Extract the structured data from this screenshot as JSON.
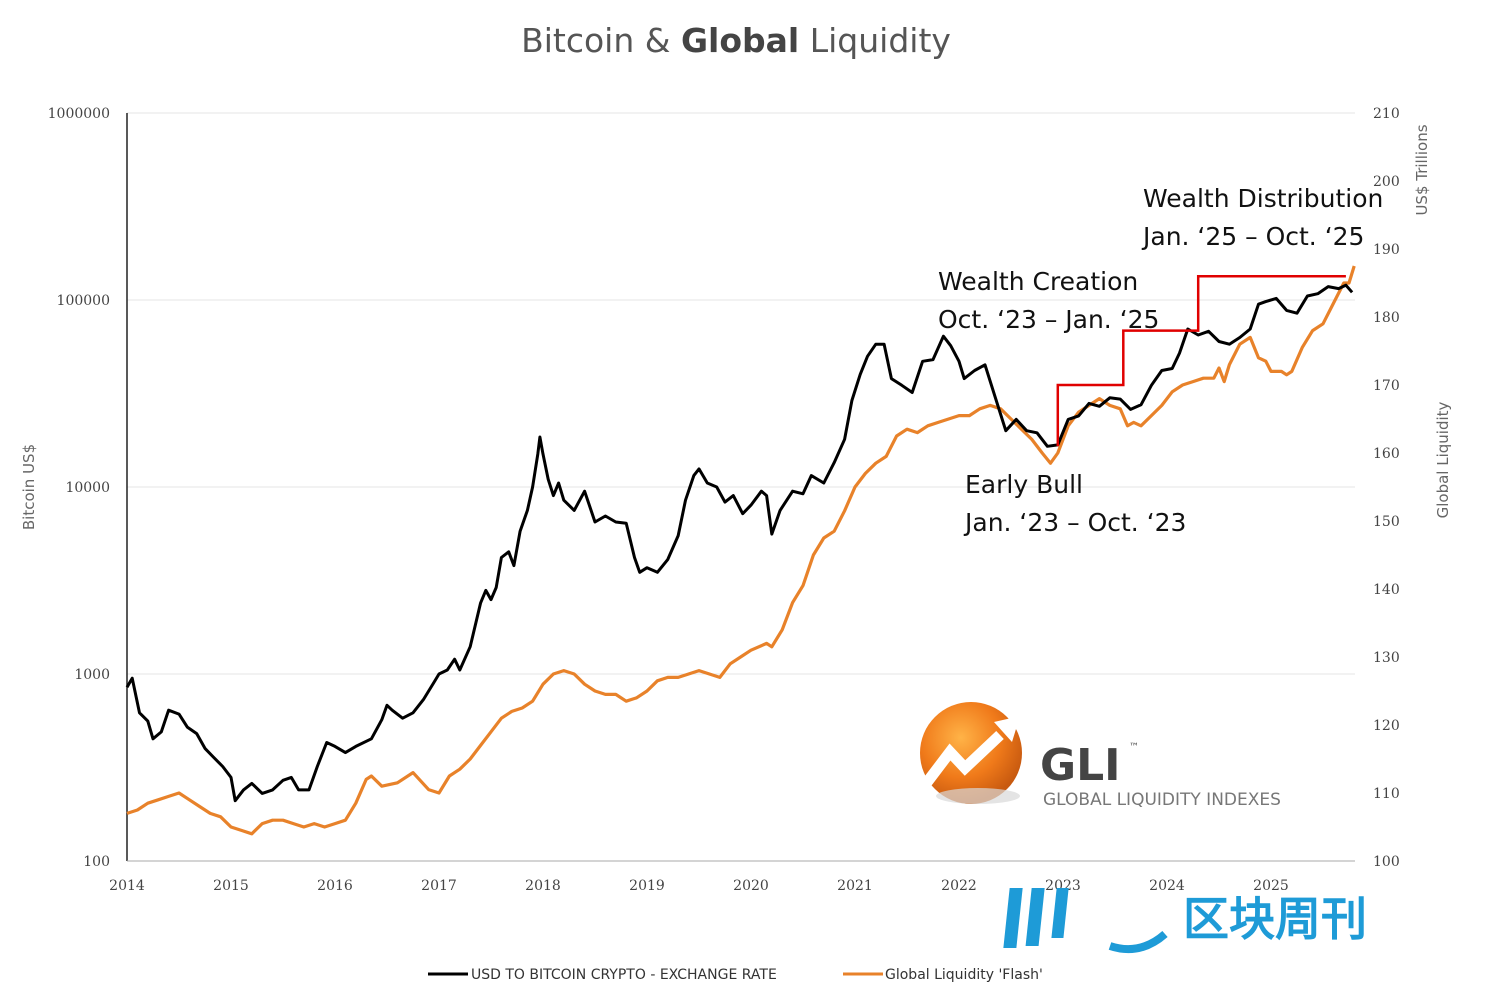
{
  "chart_data": {
    "type": "line",
    "title_parts": [
      "Bitcoin & ",
      "Global",
      " Liquidity"
    ],
    "left_axis": {
      "label": "Bitcoin US$",
      "scale": "log",
      "range": [
        100,
        1000000
      ],
      "ticks": [
        "1000000",
        "100000",
        "10000",
        "1000",
        "100"
      ]
    },
    "right_axis": {
      "label_top": "US$ Trillions",
      "label_mid": "Global Liquidity",
      "range": [
        100,
        210
      ],
      "ticks": [
        "210",
        "200",
        "190",
        "180",
        "170",
        "160",
        "150",
        "140",
        "130",
        "120",
        "110",
        "100"
      ]
    },
    "x_axis": {
      "range": [
        2014,
        2025.8
      ],
      "ticks": [
        "2014",
        "2015",
        "2016",
        "2017",
        "2018",
        "2019",
        "2020",
        "2021",
        "2022",
        "2023",
        "2024",
        "2025"
      ]
    },
    "series": [
      {
        "name": "USD TO BITCOIN CRYPTO - EXCHANGE RATE",
        "axis": "left",
        "color": "#000000",
        "points": [
          [
            2014.0,
            850
          ],
          [
            2014.05,
            950
          ],
          [
            2014.12,
            620
          ],
          [
            2014.2,
            560
          ],
          [
            2014.25,
            450
          ],
          [
            2014.33,
            490
          ],
          [
            2014.4,
            640
          ],
          [
            2014.5,
            610
          ],
          [
            2014.58,
            520
          ],
          [
            2014.67,
            480
          ],
          [
            2014.75,
            400
          ],
          [
            2014.83,
            360
          ],
          [
            2014.92,
            320
          ],
          [
            2015.0,
            280
          ],
          [
            2015.04,
            210
          ],
          [
            2015.12,
            240
          ],
          [
            2015.2,
            260
          ],
          [
            2015.3,
            230
          ],
          [
            2015.4,
            240
          ],
          [
            2015.5,
            270
          ],
          [
            2015.58,
            280
          ],
          [
            2015.65,
            240
          ],
          [
            2015.75,
            240
          ],
          [
            2015.83,
            320
          ],
          [
            2015.92,
            430
          ],
          [
            2016.0,
            410
          ],
          [
            2016.1,
            380
          ],
          [
            2016.2,
            410
          ],
          [
            2016.35,
            450
          ],
          [
            2016.45,
            570
          ],
          [
            2016.5,
            680
          ],
          [
            2016.55,
            640
          ],
          [
            2016.65,
            580
          ],
          [
            2016.75,
            620
          ],
          [
            2016.85,
            730
          ],
          [
            2016.95,
            900
          ],
          [
            2017.0,
            1000
          ],
          [
            2017.08,
            1050
          ],
          [
            2017.15,
            1200
          ],
          [
            2017.2,
            1050
          ],
          [
            2017.3,
            1400
          ],
          [
            2017.4,
            2400
          ],
          [
            2017.45,
            2800
          ],
          [
            2017.5,
            2500
          ],
          [
            2017.55,
            2900
          ],
          [
            2017.6,
            4200
          ],
          [
            2017.67,
            4500
          ],
          [
            2017.72,
            3800
          ],
          [
            2017.78,
            5800
          ],
          [
            2017.85,
            7500
          ],
          [
            2017.9,
            10000
          ],
          [
            2017.95,
            15000
          ],
          [
            2017.97,
            18500
          ],
          [
            2018.0,
            15000
          ],
          [
            2018.05,
            11000
          ],
          [
            2018.1,
            9000
          ],
          [
            2018.15,
            10500
          ],
          [
            2018.2,
            8500
          ],
          [
            2018.3,
            7500
          ],
          [
            2018.4,
            9500
          ],
          [
            2018.5,
            6500
          ],
          [
            2018.6,
            7000
          ],
          [
            2018.7,
            6500
          ],
          [
            2018.8,
            6400
          ],
          [
            2018.88,
            4200
          ],
          [
            2018.93,
            3500
          ],
          [
            2019.0,
            3700
          ],
          [
            2019.1,
            3500
          ],
          [
            2019.2,
            4100
          ],
          [
            2019.3,
            5500
          ],
          [
            2019.37,
            8500
          ],
          [
            2019.45,
            11500
          ],
          [
            2019.5,
            12500
          ],
          [
            2019.58,
            10500
          ],
          [
            2019.67,
            10000
          ],
          [
            2019.75,
            8300
          ],
          [
            2019.83,
            9000
          ],
          [
            2019.92,
            7200
          ],
          [
            2020.0,
            8000
          ],
          [
            2020.1,
            9500
          ],
          [
            2020.15,
            9000
          ],
          [
            2020.2,
            5600
          ],
          [
            2020.28,
            7500
          ],
          [
            2020.4,
            9500
          ],
          [
            2020.5,
            9200
          ],
          [
            2020.58,
            11500
          ],
          [
            2020.7,
            10500
          ],
          [
            2020.8,
            13500
          ],
          [
            2020.9,
            18000
          ],
          [
            2020.97,
            29000
          ],
          [
            2021.05,
            40000
          ],
          [
            2021.12,
            50000
          ],
          [
            2021.2,
            58000
          ],
          [
            2021.28,
            58000
          ],
          [
            2021.35,
            38000
          ],
          [
            2021.45,
            35000
          ],
          [
            2021.55,
            32000
          ],
          [
            2021.65,
            47000
          ],
          [
            2021.75,
            48000
          ],
          [
            2021.85,
            64000
          ],
          [
            2021.92,
            57000
          ],
          [
            2022.0,
            47000
          ],
          [
            2022.05,
            38000
          ],
          [
            2022.15,
            42000
          ],
          [
            2022.25,
            45000
          ],
          [
            2022.35,
            30000
          ],
          [
            2022.45,
            20000
          ],
          [
            2022.55,
            23000
          ],
          [
            2022.65,
            20000
          ],
          [
            2022.75,
            19500
          ],
          [
            2022.85,
            16500
          ],
          [
            2022.95,
            16800
          ],
          [
            2023.05,
            23000
          ],
          [
            2023.15,
            24000
          ],
          [
            2023.25,
            28000
          ],
          [
            2023.35,
            27000
          ],
          [
            2023.45,
            30000
          ],
          [
            2023.55,
            29500
          ],
          [
            2023.65,
            26000
          ],
          [
            2023.75,
            27500
          ],
          [
            2023.85,
            35000
          ],
          [
            2023.95,
            42000
          ],
          [
            2024.05,
            43000
          ],
          [
            2024.12,
            52000
          ],
          [
            2024.2,
            70000
          ],
          [
            2024.3,
            65000
          ],
          [
            2024.4,
            68000
          ],
          [
            2024.5,
            60000
          ],
          [
            2024.6,
            58000
          ],
          [
            2024.7,
            63000
          ],
          [
            2024.8,
            70000
          ],
          [
            2024.88,
            95000
          ],
          [
            2024.95,
            98000
          ],
          [
            2025.05,
            102000
          ],
          [
            2025.15,
            88000
          ],
          [
            2025.25,
            85000
          ],
          [
            2025.35,
            105000
          ],
          [
            2025.45,
            108000
          ],
          [
            2025.55,
            118000
          ],
          [
            2025.65,
            115000
          ],
          [
            2025.72,
            120000
          ],
          [
            2025.78,
            110000
          ]
        ]
      },
      {
        "name": "Global Liquidity 'Flash'",
        "axis": "right",
        "color": "#e8822a",
        "points": [
          [
            2014.0,
            107
          ],
          [
            2014.1,
            107.5
          ],
          [
            2014.2,
            108.5
          ],
          [
            2014.3,
            109
          ],
          [
            2014.4,
            109.5
          ],
          [
            2014.5,
            110
          ],
          [
            2014.6,
            109
          ],
          [
            2014.7,
            108
          ],
          [
            2014.8,
            107
          ],
          [
            2014.9,
            106.5
          ],
          [
            2015.0,
            105
          ],
          [
            2015.1,
            104.5
          ],
          [
            2015.2,
            104
          ],
          [
            2015.3,
            105.5
          ],
          [
            2015.4,
            106
          ],
          [
            2015.5,
            106
          ],
          [
            2015.6,
            105.5
          ],
          [
            2015.7,
            105
          ],
          [
            2015.8,
            105.5
          ],
          [
            2015.9,
            105
          ],
          [
            2016.0,
            105.5
          ],
          [
            2016.1,
            106
          ],
          [
            2016.2,
            108.5
          ],
          [
            2016.3,
            112
          ],
          [
            2016.35,
            112.5
          ],
          [
            2016.45,
            111
          ],
          [
            2016.6,
            111.5
          ],
          [
            2016.75,
            113
          ],
          [
            2016.9,
            110.5
          ],
          [
            2017.0,
            110
          ],
          [
            2017.1,
            112.5
          ],
          [
            2017.2,
            113.5
          ],
          [
            2017.3,
            115
          ],
          [
            2017.4,
            117
          ],
          [
            2017.5,
            119
          ],
          [
            2017.6,
            121
          ],
          [
            2017.7,
            122
          ],
          [
            2017.8,
            122.5
          ],
          [
            2017.9,
            123.5
          ],
          [
            2018.0,
            126
          ],
          [
            2018.1,
            127.5
          ],
          [
            2018.2,
            128
          ],
          [
            2018.3,
            127.5
          ],
          [
            2018.4,
            126
          ],
          [
            2018.5,
            125
          ],
          [
            2018.6,
            124.5
          ],
          [
            2018.7,
            124.5
          ],
          [
            2018.8,
            123.5
          ],
          [
            2018.9,
            124
          ],
          [
            2019.0,
            125
          ],
          [
            2019.1,
            126.5
          ],
          [
            2019.2,
            127
          ],
          [
            2019.3,
            127
          ],
          [
            2019.4,
            127.5
          ],
          [
            2019.5,
            128
          ],
          [
            2019.6,
            127.5
          ],
          [
            2019.7,
            127
          ],
          [
            2019.8,
            129
          ],
          [
            2019.9,
            130
          ],
          [
            2020.0,
            131
          ],
          [
            2020.15,
            132
          ],
          [
            2020.2,
            131.5
          ],
          [
            2020.3,
            134
          ],
          [
            2020.4,
            138
          ],
          [
            2020.5,
            140.5
          ],
          [
            2020.6,
            145
          ],
          [
            2020.7,
            147.5
          ],
          [
            2020.8,
            148.5
          ],
          [
            2020.9,
            151.5
          ],
          [
            2021.0,
            155
          ],
          [
            2021.1,
            157
          ],
          [
            2021.2,
            158.5
          ],
          [
            2021.3,
            159.5
          ],
          [
            2021.4,
            162.5
          ],
          [
            2021.5,
            163.5
          ],
          [
            2021.6,
            163
          ],
          [
            2021.7,
            164
          ],
          [
            2021.8,
            164.5
          ],
          [
            2021.9,
            165
          ],
          [
            2022.0,
            165.5
          ],
          [
            2022.1,
            165.5
          ],
          [
            2022.2,
            166.5
          ],
          [
            2022.3,
            167
          ],
          [
            2022.4,
            166.5
          ],
          [
            2022.5,
            165
          ],
          [
            2022.6,
            163.5
          ],
          [
            2022.7,
            162
          ],
          [
            2022.8,
            160
          ],
          [
            2022.88,
            158.5
          ],
          [
            2022.95,
            160
          ],
          [
            2023.05,
            164
          ],
          [
            2023.15,
            166
          ],
          [
            2023.25,
            167
          ],
          [
            2023.35,
            168
          ],
          [
            2023.45,
            167
          ],
          [
            2023.55,
            166.5
          ],
          [
            2023.62,
            164
          ],
          [
            2023.68,
            164.5
          ],
          [
            2023.75,
            164
          ],
          [
            2023.85,
            165.5
          ],
          [
            2023.95,
            167
          ],
          [
            2024.05,
            169
          ],
          [
            2024.15,
            170
          ],
          [
            2024.25,
            170.5
          ],
          [
            2024.35,
            171
          ],
          [
            2024.45,
            171
          ],
          [
            2024.5,
            172.5
          ],
          [
            2024.55,
            170.5
          ],
          [
            2024.6,
            173
          ],
          [
            2024.7,
            176
          ],
          [
            2024.8,
            177
          ],
          [
            2024.88,
            174
          ],
          [
            2024.95,
            173.5
          ],
          [
            2025.0,
            172
          ],
          [
            2025.1,
            172
          ],
          [
            2025.15,
            171.5
          ],
          [
            2025.2,
            172
          ],
          [
            2025.3,
            175.5
          ],
          [
            2025.4,
            178
          ],
          [
            2025.5,
            179
          ],
          [
            2025.6,
            182
          ],
          [
            2025.7,
            185
          ],
          [
            2025.75,
            185
          ],
          [
            2025.8,
            187.5
          ]
        ]
      }
    ],
    "phase_steps": [
      [
        2022.95,
        161
      ],
      [
        2022.95,
        170
      ],
      [
        2023.58,
        170
      ],
      [
        2023.58,
        178
      ],
      [
        2024.3,
        178
      ],
      [
        2024.3,
        186
      ],
      [
        2025.72,
        186
      ]
    ],
    "phase_color": "#e00000",
    "annotations": [
      {
        "line1": "Wealth Distribution",
        "line2": "Jan. ‘25 – Oct. ‘25"
      },
      {
        "line1": "Wealth Creation",
        "line2": "Oct. ‘23 – Jan. ‘25"
      },
      {
        "line1": "Early Bull",
        "line2": "Jan. ‘23 – Oct. ‘23"
      }
    ],
    "legend": [
      {
        "label": "USD TO BITCOIN CRYPTO - EXCHANGE RATE",
        "color": "#000000"
      },
      {
        "label": "Global Liquidity 'Flash'",
        "color": "#e8822a"
      }
    ]
  },
  "logo": {
    "abbr": "GLI",
    "tm": "™",
    "name": "GLOBAL LIQUIDITY INDEXES"
  },
  "watermark": {
    "text": "区块周刊",
    "color": "#1e9bd7"
  }
}
